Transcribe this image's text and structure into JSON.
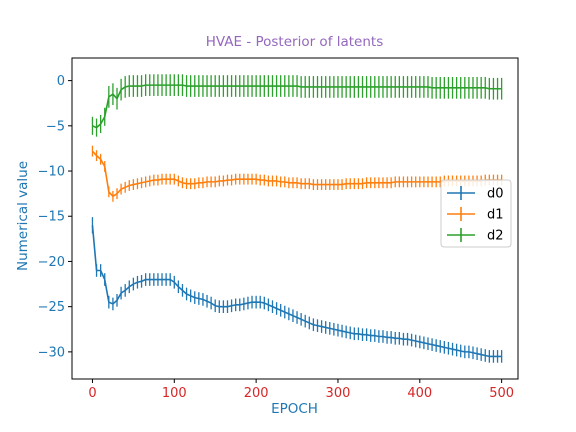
{
  "chart_data": {
    "type": "line",
    "title": "HVAE - Posterior of latents",
    "xlabel": "EPOCH",
    "ylabel": "Numerical value",
    "xlim": [
      -25,
      520
    ],
    "ylim": [
      -33,
      2.5
    ],
    "xticks": [
      0,
      100,
      200,
      300,
      400,
      500
    ],
    "yticks": [
      0,
      -5,
      -10,
      -15,
      -20,
      -25,
      -30
    ],
    "ytick_labels": [
      "0",
      "−5",
      "−10",
      "−15",
      "−20",
      "−25",
      "−30"
    ],
    "legend_position": "center-right",
    "grid": false,
    "error_bars": true,
    "colors": {
      "title": "#9467bd",
      "axis_labels": "#1f77b4",
      "x_tick_labels": "#d62728",
      "y_tick_labels": "#1f77b4",
      "frame": "#000000"
    },
    "x": [
      0,
      5,
      10,
      15,
      20,
      25,
      30,
      35,
      40,
      45,
      50,
      55,
      60,
      65,
      70,
      75,
      80,
      85,
      90,
      95,
      100,
      105,
      110,
      115,
      120,
      125,
      130,
      135,
      140,
      145,
      150,
      155,
      160,
      165,
      170,
      175,
      180,
      185,
      190,
      195,
      200,
      205,
      210,
      215,
      220,
      225,
      230,
      235,
      240,
      245,
      250,
      255,
      260,
      265,
      270,
      275,
      280,
      285,
      290,
      295,
      300,
      305,
      310,
      315,
      320,
      325,
      330,
      335,
      340,
      345,
      350,
      355,
      360,
      365,
      370,
      375,
      380,
      385,
      390,
      395,
      400,
      405,
      410,
      415,
      420,
      425,
      430,
      435,
      440,
      445,
      450,
      455,
      460,
      465,
      470,
      475,
      480,
      485,
      490,
      495,
      500
    ],
    "series": [
      {
        "name": "d0",
        "color": "#1f77b4",
        "values": [
          -16.0,
          -21.0,
          -21.0,
          -22.0,
          -24.5,
          -24.7,
          -24.3,
          -23.5,
          -23.2,
          -22.8,
          -22.5,
          -22.3,
          -22.2,
          -22.0,
          -22.0,
          -22.0,
          -22.0,
          -22.0,
          -22.0,
          -22.0,
          -22.3,
          -22.8,
          -23.2,
          -23.6,
          -23.8,
          -24.0,
          -24.1,
          -24.2,
          -24.4,
          -24.6,
          -24.9,
          -25.0,
          -25.0,
          -25.0,
          -24.9,
          -24.8,
          -24.8,
          -24.7,
          -24.6,
          -24.5,
          -24.5,
          -24.5,
          -24.6,
          -24.8,
          -25.0,
          -25.2,
          -25.4,
          -25.6,
          -25.8,
          -26.0,
          -26.2,
          -26.4,
          -26.6,
          -26.8,
          -27.0,
          -27.1,
          -27.2,
          -27.3,
          -27.4,
          -27.5,
          -27.6,
          -27.7,
          -27.8,
          -27.9,
          -28.0,
          -28.0,
          -28.1,
          -28.1,
          -28.2,
          -28.2,
          -28.3,
          -28.3,
          -28.4,
          -28.4,
          -28.5,
          -28.5,
          -28.6,
          -28.6,
          -28.7,
          -28.8,
          -28.9,
          -29.0,
          -29.1,
          -29.2,
          -29.3,
          -29.4,
          -29.5,
          -29.6,
          -29.7,
          -29.8,
          -29.9,
          -30.0,
          -30.0,
          -30.1,
          -30.2,
          -30.3,
          -30.4,
          -30.5,
          -30.5,
          -30.5,
          -30.5
        ],
        "errors": [
          0.9,
          0.7,
          0.7,
          0.7,
          0.7,
          0.7,
          0.7,
          0.7,
          0.7,
          0.7,
          0.7,
          0.7,
          0.7,
          0.7,
          0.7,
          0.7,
          0.7,
          0.7,
          0.7,
          0.7,
          0.7,
          0.7,
          0.7,
          0.7,
          0.7,
          0.7,
          0.7,
          0.7,
          0.7,
          0.7,
          0.7,
          0.7,
          0.7,
          0.7,
          0.7,
          0.7,
          0.7,
          0.7,
          0.7,
          0.7,
          0.7,
          0.7,
          0.7,
          0.7,
          0.7,
          0.7,
          0.7,
          0.7,
          0.7,
          0.7,
          0.7,
          0.7,
          0.7,
          0.7,
          0.7,
          0.7,
          0.7,
          0.7,
          0.7,
          0.7,
          0.7,
          0.7,
          0.7,
          0.7,
          0.7,
          0.7,
          0.7,
          0.7,
          0.7,
          0.7,
          0.7,
          0.7,
          0.7,
          0.7,
          0.7,
          0.7,
          0.7,
          0.7,
          0.7,
          0.7,
          0.7,
          0.7,
          0.7,
          0.7,
          0.7,
          0.7,
          0.7,
          0.7,
          0.7,
          0.7,
          0.7,
          0.7,
          0.7,
          0.7,
          0.7,
          0.7,
          0.7,
          0.7,
          0.7,
          0.7,
          0.7
        ]
      },
      {
        "name": "d1",
        "color": "#ff7f0e",
        "values": [
          -7.8,
          -8.3,
          -8.7,
          -9.5,
          -12.3,
          -12.8,
          -12.5,
          -12.0,
          -11.8,
          -11.6,
          -11.5,
          -11.4,
          -11.3,
          -11.2,
          -11.1,
          -11.0,
          -11.0,
          -10.9,
          -10.9,
          -10.9,
          -10.9,
          -11.1,
          -11.3,
          -11.4,
          -11.4,
          -11.4,
          -11.3,
          -11.3,
          -11.2,
          -11.2,
          -11.2,
          -11.1,
          -11.1,
          -11.0,
          -11.0,
          -10.9,
          -10.9,
          -10.9,
          -10.9,
          -10.9,
          -10.9,
          -11.0,
          -11.0,
          -11.1,
          -11.1,
          -11.1,
          -11.2,
          -11.2,
          -11.3,
          -11.3,
          -11.3,
          -11.4,
          -11.4,
          -11.4,
          -11.5,
          -11.5,
          -11.5,
          -11.5,
          -11.5,
          -11.5,
          -11.5,
          -11.5,
          -11.4,
          -11.4,
          -11.4,
          -11.4,
          -11.4,
          -11.3,
          -11.3,
          -11.3,
          -11.3,
          -11.3,
          -11.3,
          -11.3,
          -11.2,
          -11.2,
          -11.2,
          -11.2,
          -11.2,
          -11.2,
          -11.2,
          -11.2,
          -11.2,
          -11.2,
          -11.2,
          -11.2,
          -11.1,
          -11.1,
          -11.1,
          -11.1,
          -11.1,
          -11.1,
          -11.1,
          -11.1,
          -11.1,
          -11.1,
          -11.0,
          -11.0,
          -11.0,
          -11.0,
          -11.0
        ],
        "errors": [
          0.6,
          0.6,
          0.6,
          0.6,
          0.6,
          0.6,
          0.6,
          0.6,
          0.6,
          0.6,
          0.6,
          0.6,
          0.6,
          0.6,
          0.6,
          0.6,
          0.6,
          0.6,
          0.6,
          0.6,
          0.6,
          0.6,
          0.6,
          0.6,
          0.6,
          0.6,
          0.6,
          0.6,
          0.6,
          0.6,
          0.6,
          0.6,
          0.6,
          0.6,
          0.6,
          0.6,
          0.6,
          0.6,
          0.6,
          0.6,
          0.6,
          0.6,
          0.6,
          0.6,
          0.6,
          0.6,
          0.6,
          0.6,
          0.6,
          0.6,
          0.6,
          0.6,
          0.6,
          0.6,
          0.6,
          0.6,
          0.6,
          0.6,
          0.6,
          0.6,
          0.6,
          0.6,
          0.6,
          0.6,
          0.6,
          0.6,
          0.6,
          0.6,
          0.6,
          0.6,
          0.6,
          0.6,
          0.6,
          0.6,
          0.6,
          0.6,
          0.6,
          0.6,
          0.6,
          0.6,
          0.6,
          0.6,
          0.6,
          0.6,
          0.6,
          0.6,
          0.6,
          0.6,
          0.6,
          0.6,
          0.6,
          0.6,
          0.6,
          0.6,
          0.6,
          0.6,
          0.6,
          0.6,
          0.6,
          0.6,
          0.6
        ]
      },
      {
        "name": "d2",
        "color": "#2ca02c",
        "values": [
          -5.0,
          -5.2,
          -4.8,
          -4.0,
          -1.8,
          -1.5,
          -2.0,
          -1.0,
          -0.7,
          -0.6,
          -0.6,
          -0.6,
          -0.6,
          -0.5,
          -0.5,
          -0.5,
          -0.5,
          -0.5,
          -0.5,
          -0.5,
          -0.5,
          -0.5,
          -0.5,
          -0.6,
          -0.6,
          -0.6,
          -0.6,
          -0.6,
          -0.6,
          -0.6,
          -0.6,
          -0.6,
          -0.6,
          -0.6,
          -0.6,
          -0.6,
          -0.6,
          -0.6,
          -0.6,
          -0.6,
          -0.6,
          -0.6,
          -0.6,
          -0.6,
          -0.6,
          -0.6,
          -0.6,
          -0.6,
          -0.6,
          -0.6,
          -0.6,
          -0.7,
          -0.7,
          -0.7,
          -0.7,
          -0.7,
          -0.7,
          -0.7,
          -0.7,
          -0.7,
          -0.7,
          -0.7,
          -0.7,
          -0.7,
          -0.7,
          -0.7,
          -0.7,
          -0.7,
          -0.7,
          -0.7,
          -0.7,
          -0.7,
          -0.7,
          -0.7,
          -0.7,
          -0.7,
          -0.7,
          -0.7,
          -0.7,
          -0.7,
          -0.7,
          -0.7,
          -0.7,
          -0.8,
          -0.8,
          -0.8,
          -0.8,
          -0.8,
          -0.8,
          -0.8,
          -0.8,
          -0.8,
          -0.8,
          -0.8,
          -0.8,
          -0.8,
          -0.8,
          -0.9,
          -0.9,
          -0.9,
          -0.9
        ],
        "errors": [
          1.0,
          1.0,
          1.0,
          1.0,
          1.2,
          1.2,
          1.2,
          1.2,
          1.2,
          1.2,
          1.2,
          1.2,
          1.2,
          1.2,
          1.2,
          1.2,
          1.2,
          1.2,
          1.2,
          1.2,
          1.2,
          1.2,
          1.2,
          1.2,
          1.2,
          1.2,
          1.2,
          1.2,
          1.2,
          1.2,
          1.2,
          1.2,
          1.2,
          1.2,
          1.2,
          1.2,
          1.2,
          1.2,
          1.2,
          1.2,
          1.2,
          1.2,
          1.2,
          1.2,
          1.2,
          1.2,
          1.2,
          1.2,
          1.2,
          1.2,
          1.2,
          1.2,
          1.2,
          1.2,
          1.2,
          1.2,
          1.2,
          1.2,
          1.2,
          1.2,
          1.2,
          1.2,
          1.2,
          1.2,
          1.2,
          1.2,
          1.2,
          1.2,
          1.2,
          1.2,
          1.2,
          1.2,
          1.2,
          1.2,
          1.2,
          1.2,
          1.2,
          1.2,
          1.2,
          1.2,
          1.2,
          1.2,
          1.2,
          1.2,
          1.2,
          1.2,
          1.2,
          1.2,
          1.2,
          1.2,
          1.2,
          1.2,
          1.2,
          1.2,
          1.2,
          1.2,
          1.2,
          1.2,
          1.2,
          1.2,
          1.2
        ]
      }
    ]
  }
}
